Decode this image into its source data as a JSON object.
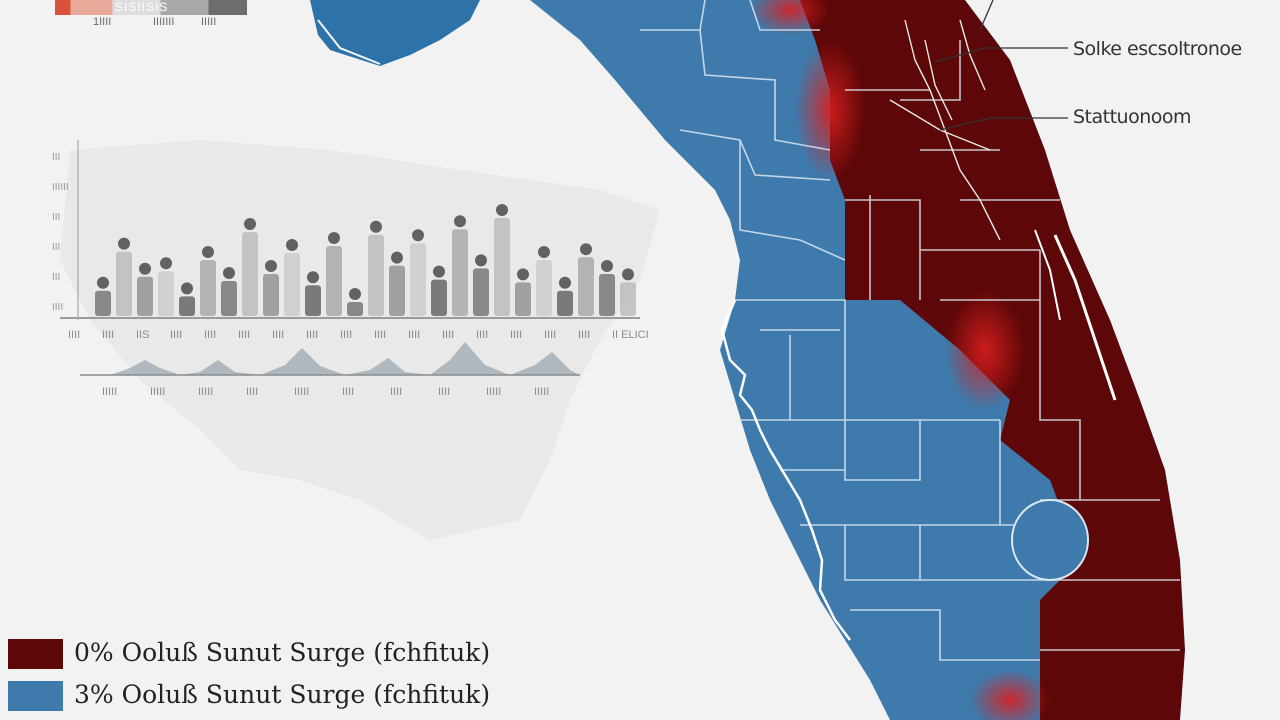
{
  "top_scale": {
    "label": "SISIISIS",
    "ticks": [
      "1IIII",
      "IIIIIII",
      "IIIII"
    ]
  },
  "callouts": [
    {
      "text": "Solke escsoltronoe"
    },
    {
      "text": "Stattuonoom"
    }
  ],
  "colors": {
    "surge_high": "#5e0708",
    "surge_alert": "#c81d1d",
    "surge_low": "#3e7aab",
    "county_line": "#dbe7f1",
    "background": "#f2f2f2"
  },
  "chart_data": {
    "type": "bar",
    "series": [
      {
        "values": [
          0.18,
          0.46,
          0.28,
          0.32,
          0.14,
          0.4,
          0.25,
          0.6,
          0.3,
          0.45,
          0.22,
          0.5,
          0.1,
          0.58,
          0.36,
          0.52,
          0.26,
          0.62,
          0.34,
          0.7,
          0.24,
          0.4,
          0.18,
          0.42,
          0.3,
          0.24
        ]
      }
    ],
    "x_tick_labels": [
      "IIII",
      "IIII",
      "IIS",
      "IIII",
      "IIII",
      "IIII",
      "IIII",
      "IIII",
      "IIII",
      "IIII",
      "IIII",
      "IIII",
      "IIII",
      "IIII",
      "IIII",
      "IIII",
      "II ELICI"
    ],
    "y_tick_labels": [
      "III",
      "IIIIII",
      "III",
      "III",
      "III",
      "IIII"
    ],
    "sub_tick_labels": [
      "IIIII",
      "IIIII",
      "IIIII",
      "IIII",
      "IIIII",
      "IIII",
      "IIII",
      "IIII",
      "IIIII",
      "IIIII"
    ]
  },
  "legend": {
    "items": [
      {
        "label": "0% Ooluß Sunut Surge (fchfituk)"
      },
      {
        "label": "3% Ooluß Sunut Surge (fchfituk)"
      }
    ]
  }
}
